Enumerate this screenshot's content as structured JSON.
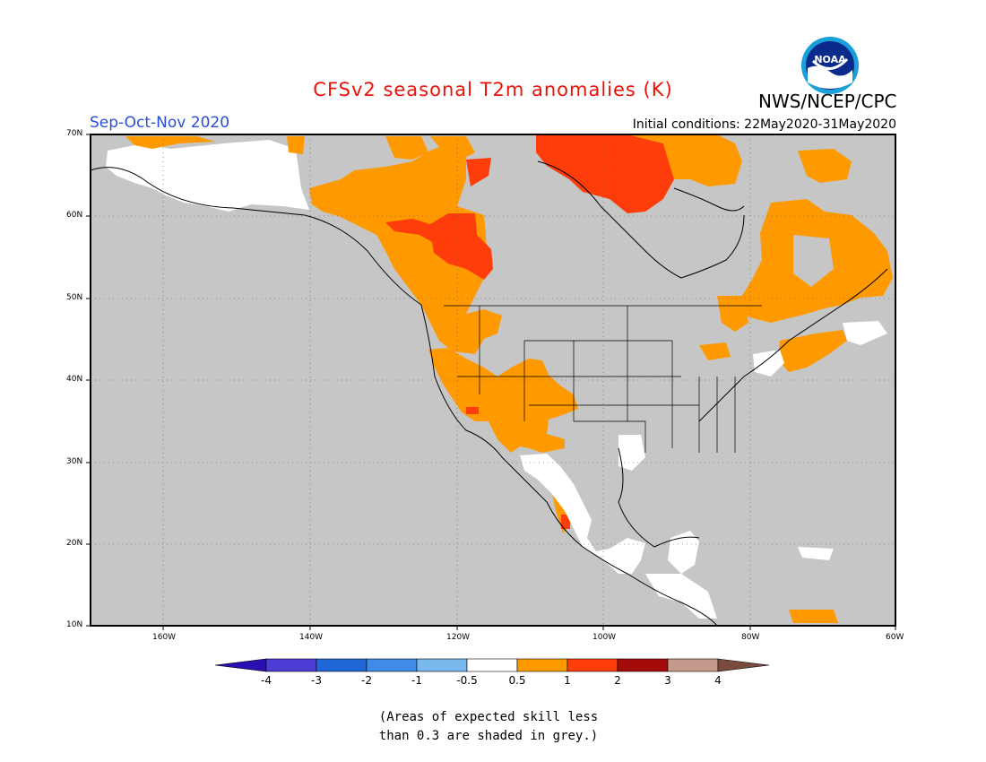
{
  "header": {
    "title": "CFSv2 seasonal T2m anomalies (K)",
    "org": "NWS/NCEP/CPC",
    "season": "Sep-Oct-Nov 2020",
    "initial_conditions": "Initial conditions: 22May2020-31May2020",
    "logo_text": "NOAA"
  },
  "map": {
    "lon_range": [
      -170,
      -60
    ],
    "lat_range": [
      10,
      70
    ],
    "x_ticks": [
      "160W",
      "140W",
      "120W",
      "100W",
      "80W",
      "60W"
    ],
    "y_ticks": [
      "70N",
      "60N",
      "50N",
      "40N",
      "30N",
      "20N",
      "10N"
    ],
    "low_skill_color": "#c6c6c6",
    "regions": [
      {
        "name": "Alaska / Yukon",
        "category": "-0.5 to 0.5"
      },
      {
        "name": "Western Canada",
        "category": "0.5 to 1"
      },
      {
        "name": "Northern Alberta / Saskatchewan",
        "category": "1 to 2"
      },
      {
        "name": "Nunavut / Hudson Bay north",
        "category": "1 to 2"
      },
      {
        "name": "Quebec / Labrador",
        "category": "0.5 to 1"
      },
      {
        "name": "US Southwest",
        "category": "0.5 to 1"
      },
      {
        "name": "Mexico / Central America",
        "category": "-0.5 to 0.5"
      }
    ]
  },
  "colorbar": {
    "labels": [
      "-4",
      "-3",
      "-2",
      "-1",
      "-0.5",
      "0.5",
      "1",
      "2",
      "3",
      "4"
    ],
    "colors": [
      "#2b0fb5",
      "#4d3ed6",
      "#1f66d6",
      "#3f8ce8",
      "#79b8ec",
      "#ffffff",
      "#ff9900",
      "#ff3d0a",
      "#a30a0a",
      "#c49a8c",
      "#7a4a3c"
    ]
  },
  "note": {
    "line1": "(Areas of expected skill less",
    "line2": "than 0.3 are shaded in grey.)"
  }
}
